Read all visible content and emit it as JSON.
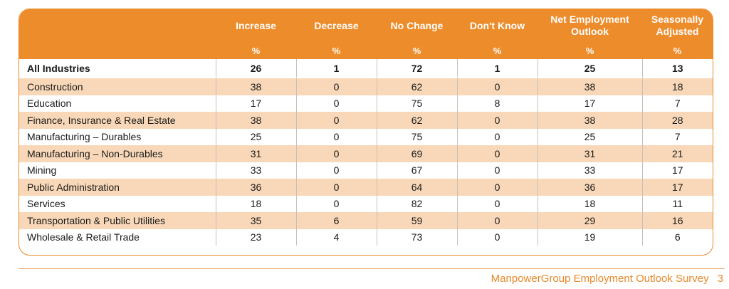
{
  "table": {
    "headers": [
      "",
      "Increase",
      "Decrease",
      "No Change",
      "Don't Know",
      "Net Employment Outlook",
      "Seasonally Adjusted"
    ],
    "header_lines": [
      [
        ""
      ],
      [
        "Increase"
      ],
      [
        "Decrease"
      ],
      [
        "No Change"
      ],
      [
        "Don't Know"
      ],
      [
        "Net Employment",
        "Outlook"
      ],
      [
        "Seasonally",
        "Adjusted"
      ]
    ],
    "units": [
      "",
      "%",
      "%",
      "%",
      "%",
      "%",
      "%"
    ],
    "rows": [
      [
        "All Industries",
        "26",
        "1",
        "72",
        "1",
        "25",
        "13"
      ],
      [
        "Construction",
        "38",
        "0",
        "62",
        "0",
        "38",
        "18"
      ],
      [
        "Education",
        "17",
        "0",
        "75",
        "8",
        "17",
        "7"
      ],
      [
        "Finance, Insurance & Real Estate",
        "38",
        "0",
        "62",
        "0",
        "38",
        "28"
      ],
      [
        "Manufacturing – Durables",
        "25",
        "0",
        "75",
        "0",
        "25",
        "7"
      ],
      [
        "Manufacturing – Non-Durables",
        "31",
        "0",
        "69",
        "0",
        "31",
        "21"
      ],
      [
        "Mining",
        "33",
        "0",
        "67",
        "0",
        "33",
        "17"
      ],
      [
        "Public Administration",
        "36",
        "0",
        "64",
        "0",
        "36",
        "17"
      ],
      [
        "Services",
        "18",
        "0",
        "82",
        "0",
        "18",
        "11"
      ],
      [
        "Transportation & Public Utilities",
        "35",
        "6",
        "59",
        "0",
        "29",
        "16"
      ],
      [
        "Wholesale & Retail Trade",
        "23",
        "4",
        "73",
        "0",
        "19",
        "6"
      ]
    ]
  },
  "footer": {
    "title": "ManpowerGroup Employment Outlook Survey",
    "page_number": "3"
  },
  "colors": {
    "accent": "#ed8c2b",
    "row_shade": "#f8d8b8"
  }
}
